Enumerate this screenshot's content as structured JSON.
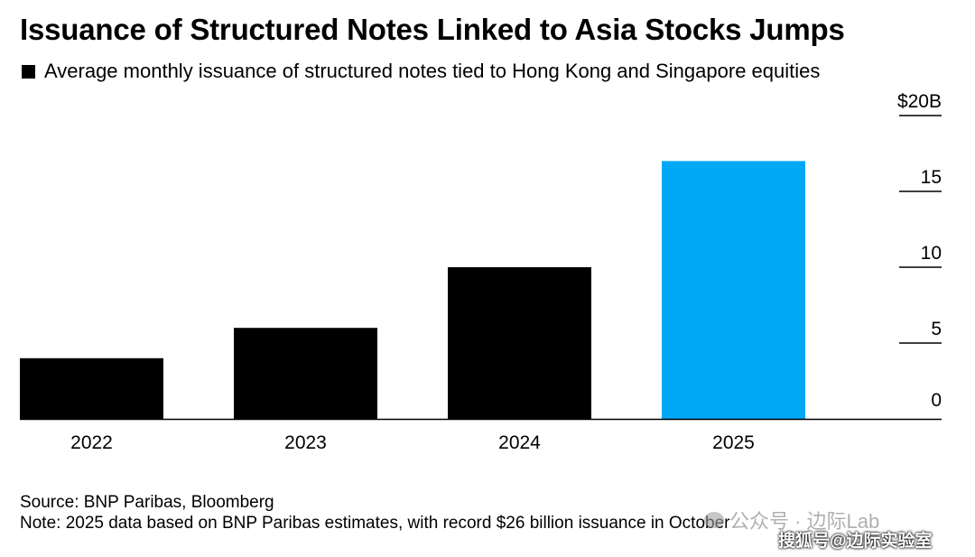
{
  "header": {
    "title": "Issuance of Structured Notes Linked to Asia Stocks Jumps"
  },
  "legend": {
    "label": "Average monthly issuance of structured notes tied to Hong Kong and Singapore equities",
    "color": "#000000"
  },
  "chart_data": {
    "type": "bar",
    "title": "Issuance of Structured Notes Linked to Asia Stocks Jumps",
    "series_name": "Average monthly issuance of structured notes tied to Hong Kong and Singapore equities",
    "categories": [
      "2022",
      "2023",
      "2024",
      "2025"
    ],
    "values": [
      4.0,
      6.0,
      10.0,
      17.0
    ],
    "colors": [
      "#000000",
      "#000000",
      "#000000",
      "#00a8f5"
    ],
    "ylim": [
      0,
      20
    ],
    "yticks": [
      0,
      5,
      10,
      15,
      20
    ],
    "ytick_labels": [
      "0",
      "5",
      "10",
      "15",
      "$20B"
    ],
    "yaxis_side": "right",
    "xlabel": "",
    "ylabel": ""
  },
  "footer": {
    "source": "Source: BNP Paribas, Bloomberg",
    "note": "Note: 2025 data based on BNP Paribas estimates, with record $26 billion issuance in October"
  },
  "watermark": {
    "text": "公众号 · 边际Lab",
    "overlay": "搜狐号@边际实验室"
  }
}
